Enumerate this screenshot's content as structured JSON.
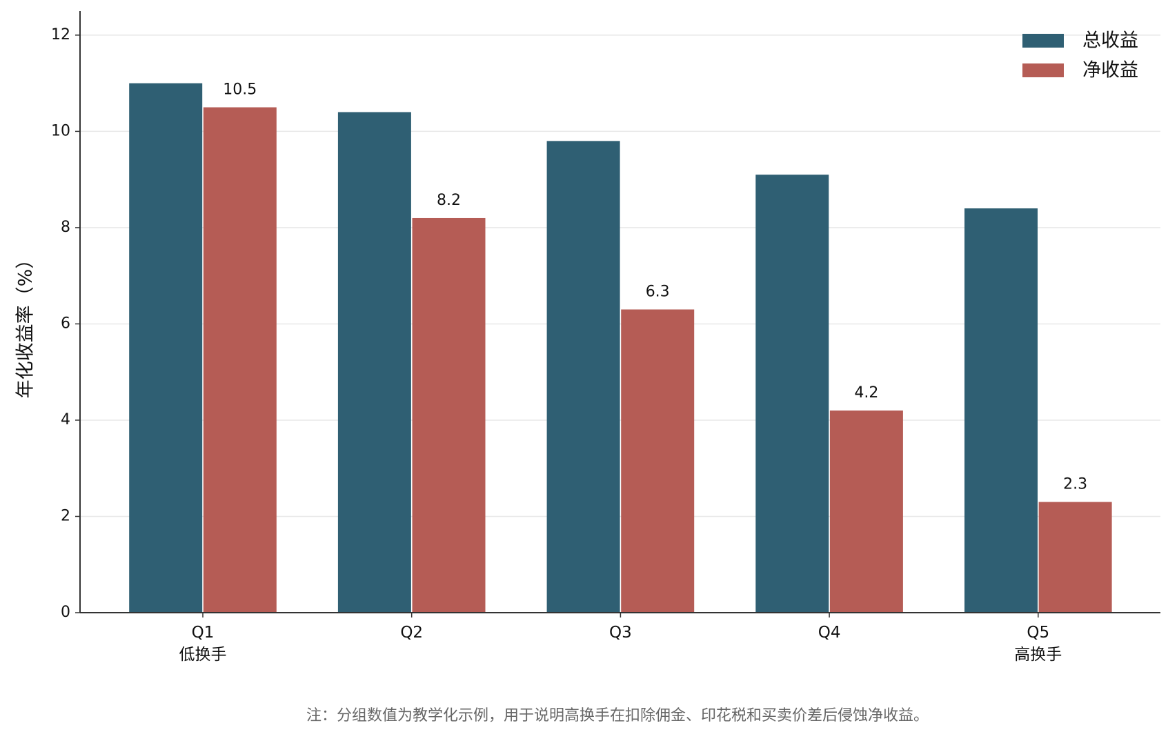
{
  "chart_data": {
    "type": "bar",
    "ylabel": "年化收益率（%）",
    "note": "注：分组数值为教学化示例，用于说明高换手在扣除佣金、印花税和买卖价差后侵蚀净收益。",
    "categories": [
      "Q1\n低换手",
      "Q2",
      "Q3",
      "Q4",
      "Q5\n高换手"
    ],
    "series": [
      {
        "name": "总收益",
        "color": "#2f5f73",
        "values": [
          11.0,
          10.4,
          9.8,
          9.1,
          8.4
        ],
        "show_labels": false
      },
      {
        "name": "净收益",
        "color": "#b55c55",
        "values": [
          10.5,
          8.2,
          6.3,
          4.2,
          2.3
        ],
        "show_labels": true
      }
    ],
    "ylim": [
      0,
      12.5
    ],
    "yticks": [
      0,
      2,
      4,
      6,
      8,
      10,
      12
    ],
    "grid": true,
    "legend": "upper right"
  }
}
